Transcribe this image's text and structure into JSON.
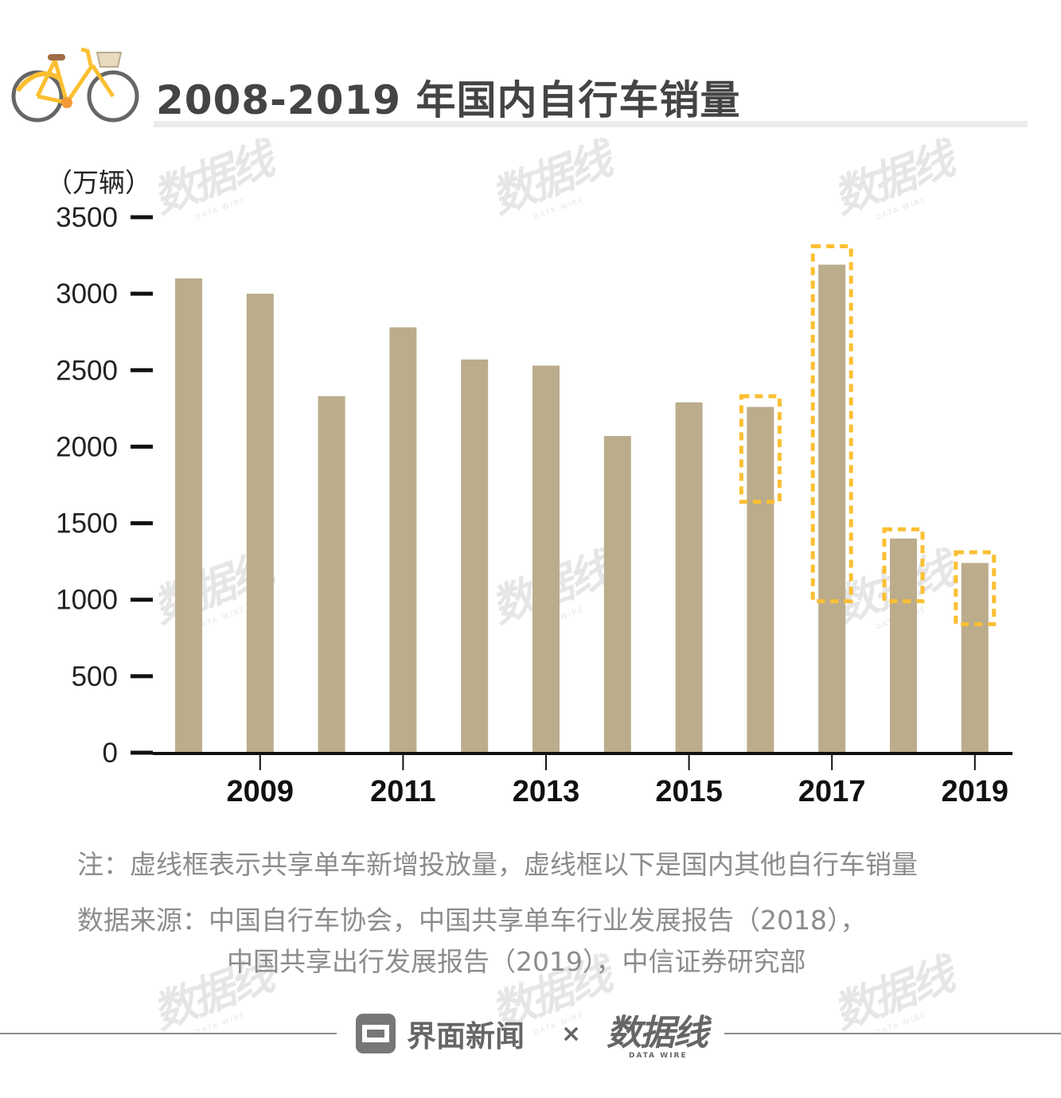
{
  "title": "2008-2019 年国内自行车销量",
  "unit_label": "（万辆）",
  "colors": {
    "bar": "#bbac8c",
    "highlight": "#fbbf32",
    "axis": "#111111",
    "note": "#8c8c8c"
  },
  "chart_data": {
    "type": "bar",
    "title": "2008-2019 年国内自行车销量",
    "ylabel": "（万辆）",
    "xlabel": "",
    "ylim": [
      0,
      3500
    ],
    "yticks": [
      0,
      500,
      1000,
      1500,
      2000,
      2500,
      3000,
      3500
    ],
    "categories": [
      2008,
      2009,
      2010,
      2011,
      2012,
      2013,
      2014,
      2015,
      2016,
      2017,
      2018,
      2019
    ],
    "x_tick_labels": [
      "2009",
      "2011",
      "2013",
      "2015",
      "2017",
      "2019"
    ],
    "values": [
      3100,
      3000,
      2330,
      2780,
      2570,
      2530,
      2070,
      2290,
      2260,
      3190,
      1400,
      1240
    ],
    "shared_bike_boxes": [
      {
        "year": 2016,
        "top": 2330,
        "bottom": 1640
      },
      {
        "year": 2017,
        "top": 3310,
        "bottom": 990
      },
      {
        "year": 2018,
        "top": 1460,
        "bottom": 990
      },
      {
        "year": 2019,
        "top": 1310,
        "bottom": 840
      }
    ],
    "legend": "none"
  },
  "notes": {
    "line1": "注：虚线框表示共享单车新增投放量，虚线框以下是国内其他自行车销量",
    "line2": "数据来源：中国自行车协会，中国共享单车行业发展报告（2018），",
    "line3": "中国共享出行发展报告（2019），中信证券研究部"
  },
  "footer": {
    "brand": "界面新闻",
    "cross": "×",
    "partner": "数据线",
    "partner_sub": "DATA WIRE"
  }
}
